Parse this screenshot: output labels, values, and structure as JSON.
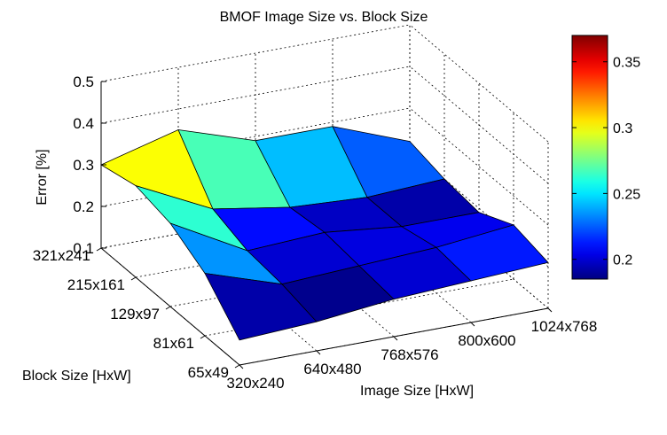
{
  "chart_data": {
    "type": "surface",
    "title": "BMOF Image Size vs. Block Size",
    "xlabel": "Image Size [HxW]",
    "ylabel": "Block Size [HxW]",
    "zlabel": "Error [%]",
    "x_categories": [
      "320x240",
      "640x480",
      "768x576",
      "800x600",
      "1024x768"
    ],
    "y_categories": [
      "65x49",
      "81x61",
      "129x97",
      "215x161",
      "321x241"
    ],
    "z_ticks": [
      "0.1",
      "0.2",
      "0.3",
      "0.4",
      "0.5"
    ],
    "zlim": [
      0.1,
      0.5
    ],
    "z": [
      [
        0.16,
        0.17,
        0.19,
        0.2,
        0.21
      ],
      [
        0.25,
        0.19,
        0.2,
        0.21,
        0.23
      ],
      [
        0.3,
        0.2,
        0.21,
        0.19,
        0.19
      ],
      [
        0.32,
        0.23,
        0.2,
        0.19,
        0.2
      ],
      [
        0.3,
        0.35,
        0.29,
        0.29,
        0.22
      ]
    ],
    "colorbar": {
      "colormap": "jet",
      "range": [
        0.185,
        0.37
      ],
      "ticks": [
        "0.2",
        "0.25",
        "0.3",
        "0.35"
      ]
    },
    "grid": true
  }
}
